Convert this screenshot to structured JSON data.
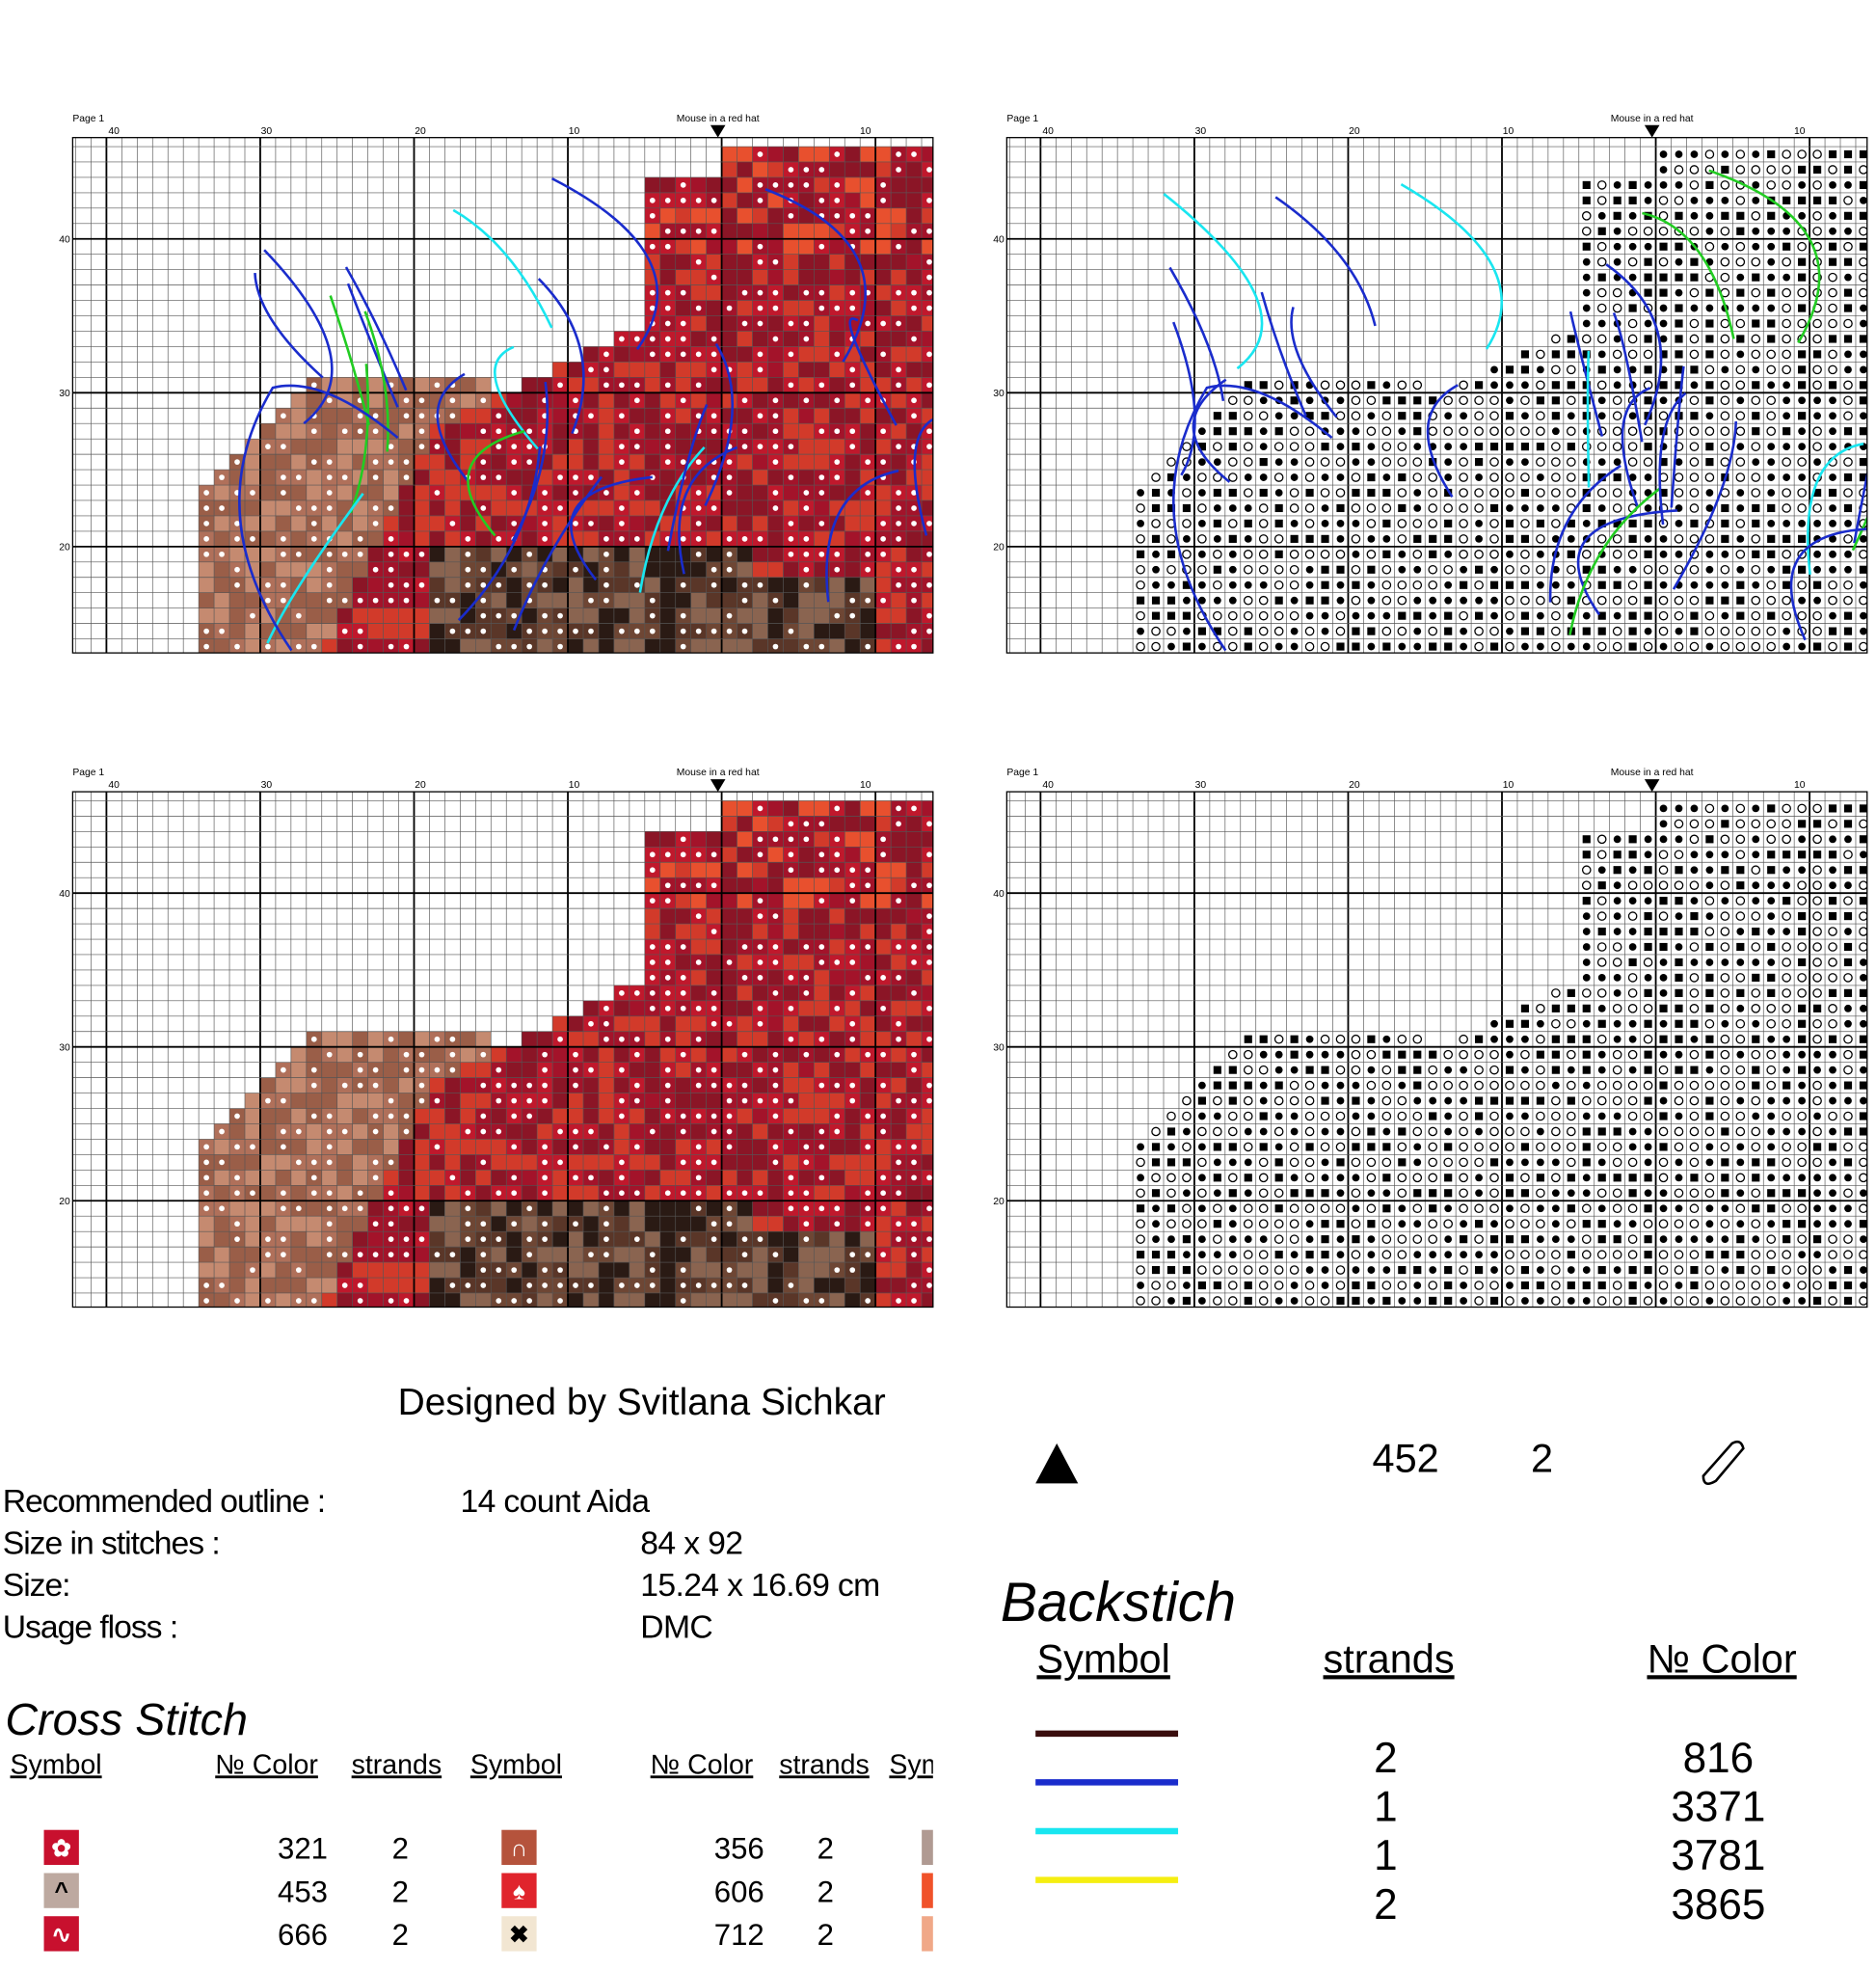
{
  "panels": [
    {
      "page": "Page 1",
      "title": "Mouse in a red hat",
      "top_numbers": [
        "40",
        "30",
        "20",
        "10",
        "10"
      ],
      "side_numbers": [
        "40",
        "30",
        "20"
      ]
    },
    {
      "page": "Page 1",
      "title": "Mouse in a red hat",
      "top_numbers": [
        "40",
        "30",
        "20",
        "10",
        "10"
      ],
      "side_numbers": [
        "40",
        "30",
        "20"
      ]
    },
    {
      "page": "Page 1",
      "title": "Mouse in a red hat",
      "top_numbers": [
        "40",
        "30",
        "20",
        "10",
        "10"
      ],
      "side_numbers": [
        "40",
        "30",
        "20"
      ]
    },
    {
      "page": "Page 1",
      "title": "Mouse in a red hat",
      "top_numbers": [
        "40",
        "30",
        "20",
        "10",
        "10"
      ],
      "side_numbers": [
        "40",
        "30",
        "20"
      ]
    }
  ],
  "designer": "Designed by Svitlana Sichkar",
  "info": [
    {
      "label": "Recommended outline :",
      "value": "14 count Aida"
    },
    {
      "label": "Size in stitches :",
      "value": "84 x 92"
    },
    {
      "label": "Size:",
      "value": "15.24 x 16.69 cm"
    },
    {
      "label": "Usage floss :",
      "value": "DMC"
    }
  ],
  "cross_stitch": {
    "title": "Cross Stitch",
    "headers": [
      "Symbol",
      "№ Color",
      "strands",
      "Symbol",
      "№ Color",
      "strands",
      "Symbol"
    ],
    "rows": [
      [
        {
          "symbol": "✿",
          "bg": "#c8102e",
          "fg": "#ffffff",
          "color": "321",
          "strands": "2"
        },
        {
          "symbol": "∩",
          "bg": "#b5533c",
          "fg": "#ffffff",
          "color": "356",
          "strands": "2"
        }
      ],
      [
        {
          "symbol": "^",
          "bg": "#bda9a0",
          "fg": "#000000",
          "color": "453",
          "strands": "2"
        },
        {
          "symbol": "♠",
          "bg": "#e0242c",
          "fg": "#ffffff",
          "color": "606",
          "strands": "2"
        }
      ],
      [
        {
          "symbol": "∿",
          "bg": "#c8102e",
          "fg": "#ffffff",
          "color": "666",
          "strands": "2"
        },
        {
          "symbol": "✖",
          "bg": "#f2e6d2",
          "fg": "#000000",
          "color": "712",
          "strands": "2"
        }
      ]
    ]
  },
  "extra": {
    "color": "452",
    "strands": "2"
  },
  "backstitch": {
    "title": "Backstich",
    "headers": [
      "Symbol",
      "strands",
      "№ Color"
    ],
    "rows": [
      {
        "line_color": "#3a0e0e",
        "strands": "2",
        "color": "816"
      },
      {
        "line_color": "#1a2ccc",
        "strands": "1",
        "color": "3371"
      },
      {
        "line_color": "#19e6f0",
        "strands": "1",
        "color": "3781"
      },
      {
        "line_color": "#f5ee10",
        "strands": "2",
        "color": "3865"
      }
    ]
  }
}
